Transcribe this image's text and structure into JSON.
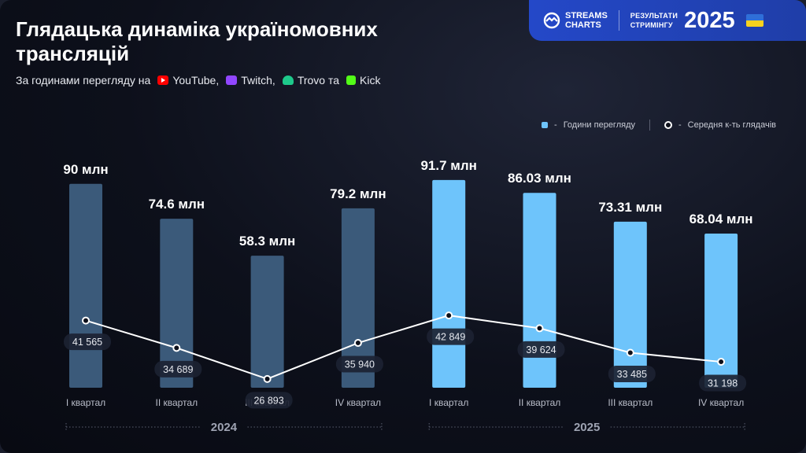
{
  "header": {
    "title": "Глядацька динаміка україномовних трансляцій",
    "subtitle_prefix": "За годинами перегляду на",
    "platforms": [
      {
        "name": "YouTube,",
        "icon": "youtube-icon",
        "color": "#ff0000"
      },
      {
        "name": "Twitch,",
        "icon": "twitch-icon",
        "color": "#9146ff"
      },
      {
        "name": "Trovo та",
        "icon": "trovo-icon",
        "color": "#1ec98b"
      },
      {
        "name": "Kick",
        "icon": "kick-icon",
        "color": "#53fc18"
      }
    ]
  },
  "badge": {
    "brand_line1": "STREAMS",
    "brand_line2": "CHARTS",
    "results_line1": "РЕЗУЛЬТАТИ",
    "results_line2": "СТРИМІНГУ",
    "year": "2025"
  },
  "legend": {
    "bars": "Години перегляду",
    "line": "Середня к-ть глядачів",
    "dash": "-"
  },
  "colors": {
    "bar_2024": "#3b5a7a",
    "bar_2025": "#6ec4fb",
    "accent": "#2448c8"
  },
  "chart_data": {
    "type": "bar",
    "categories": [
      "I квартал",
      "II квартал",
      "III квартал",
      "IV квартал",
      "I квартал",
      "II квартал",
      "III квартал",
      "IV квартал"
    ],
    "groups": [
      {
        "label": "2024",
        "start": 0,
        "end": 3
      },
      {
        "label": "2025",
        "start": 4,
        "end": 7
      }
    ],
    "series": [
      {
        "name": "Години перегляду",
        "type": "bar",
        "values": [
          90,
          74.6,
          58.3,
          79.2,
          91.7,
          86.03,
          73.31,
          68.04
        ],
        "labels": [
          "90 млн",
          "74.6 млн",
          "58.3 млн",
          "79.2 млн",
          "91.7 млн",
          "86.03 млн",
          "73.31 млн",
          "68.04 млн"
        ]
      },
      {
        "name": "Середня к-ть глядачів",
        "type": "line",
        "values": [
          41565,
          34689,
          26893,
          35940,
          42849,
          39624,
          33485,
          31198
        ],
        "labels": [
          "41 565",
          "34 689",
          "26 893",
          "35 940",
          "42 849",
          "39 624",
          "33 485",
          "31 198"
        ]
      }
    ],
    "bar_ylim": [
      0,
      100
    ],
    "line_ylim": [
      0,
      80000
    ],
    "grid": false,
    "legend_position": "top-right"
  }
}
